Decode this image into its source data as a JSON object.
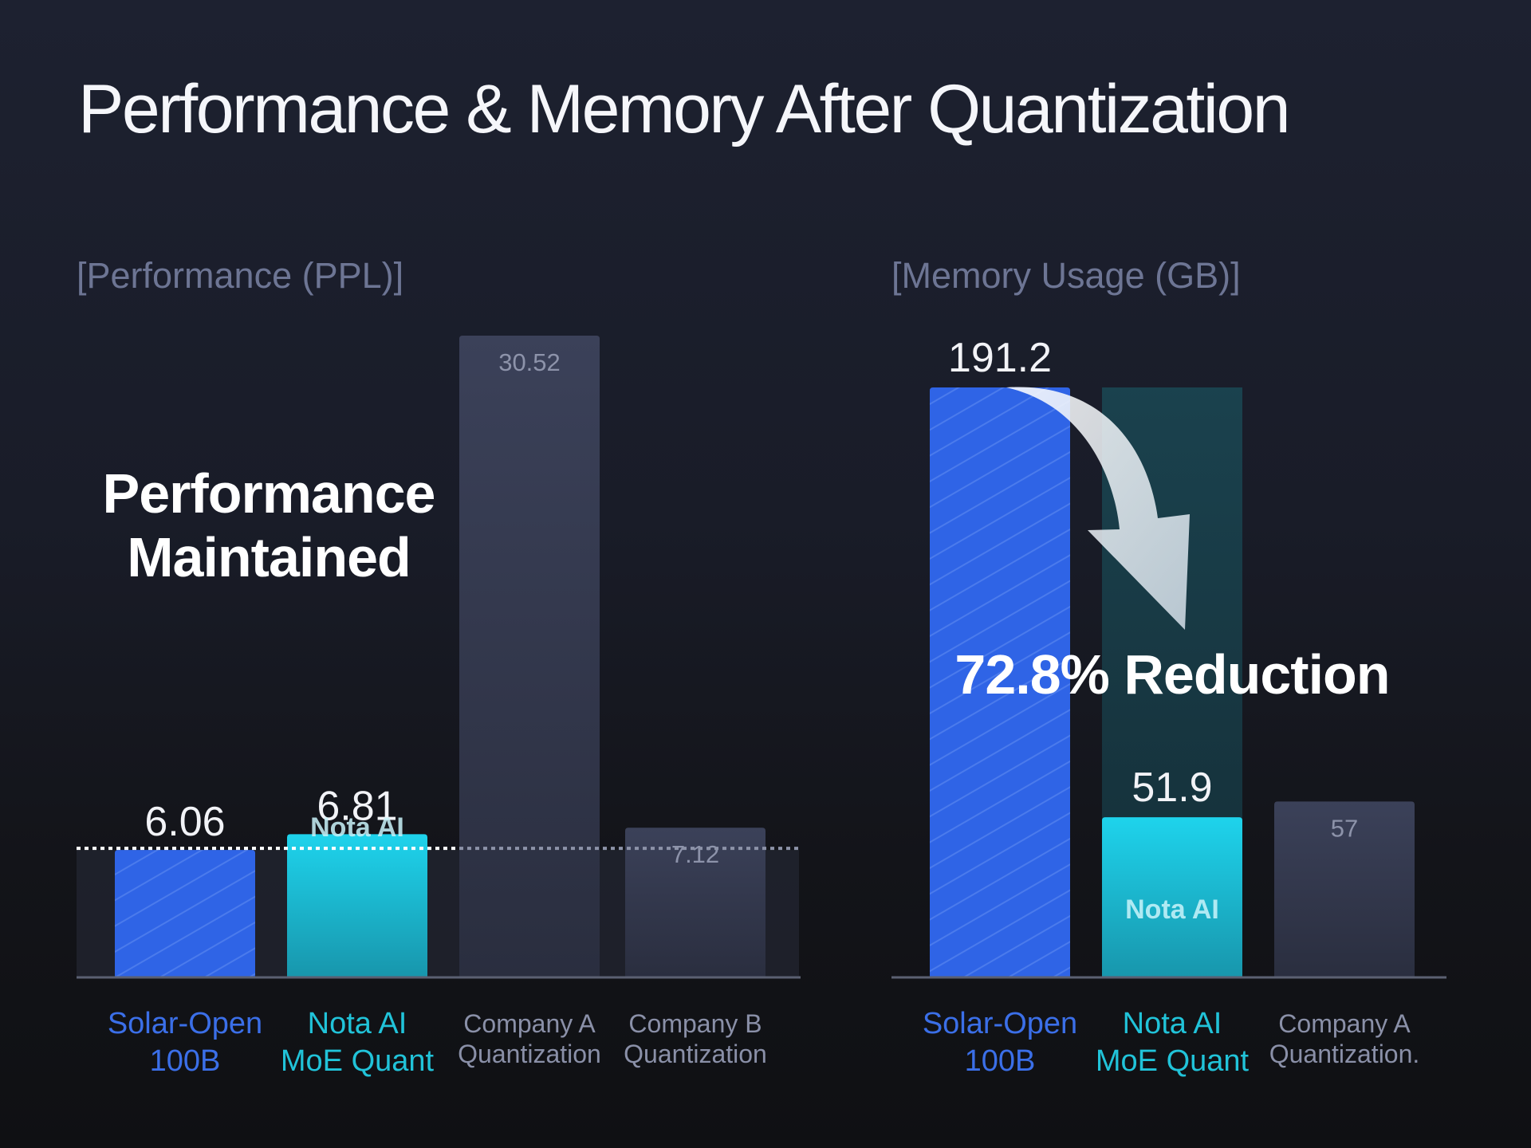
{
  "title": "Performance & Memory After Quantization",
  "colors": {
    "solar": "#2f64e6",
    "solar_stripe": "#5b8bf2",
    "nota": "#1bcfe8",
    "nota_dark": "#1797ad",
    "competitor": "#3a4058",
    "solar_label": "#3b6fe8",
    "nota_label": "#21c3d9",
    "muted_label": "#8a90a8",
    "axis": "#5b6072"
  },
  "chart_data": [
    {
      "type": "bar",
      "title": "[Performance (PPL)]",
      "categories": [
        [
          "Solar-Open",
          "100B"
        ],
        [
          "Nota AI",
          "MoE Quant"
        ],
        [
          "Company A",
          "Quantization"
        ],
        [
          "Company B",
          "Quantization"
        ]
      ],
      "values": [
        6.06,
        6.81,
        30.52,
        7.12
      ],
      "value_labels": [
        "6.06",
        "6.81",
        "30.52",
        "7.12"
      ],
      "bar_logos": [
        "",
        "Nota AI",
        "",
        ""
      ],
      "annotation": [
        "Performance",
        "Maintained"
      ],
      "grid": false
    },
    {
      "type": "bar",
      "title": "[Memory Usage (GB)]",
      "categories": [
        [
          "Solar-Open",
          "100B"
        ],
        [
          "Nota AI",
          "MoE Quant"
        ],
        [
          "Company A",
          "Quantization."
        ]
      ],
      "values": [
        191.2,
        51.9,
        57
      ],
      "value_labels": [
        "191.2",
        "51.9",
        "57"
      ],
      "bar_logos": [
        "",
        "Nota AI",
        ""
      ],
      "annotation": [
        "72.8% Reduction"
      ],
      "grid": false
    }
  ]
}
